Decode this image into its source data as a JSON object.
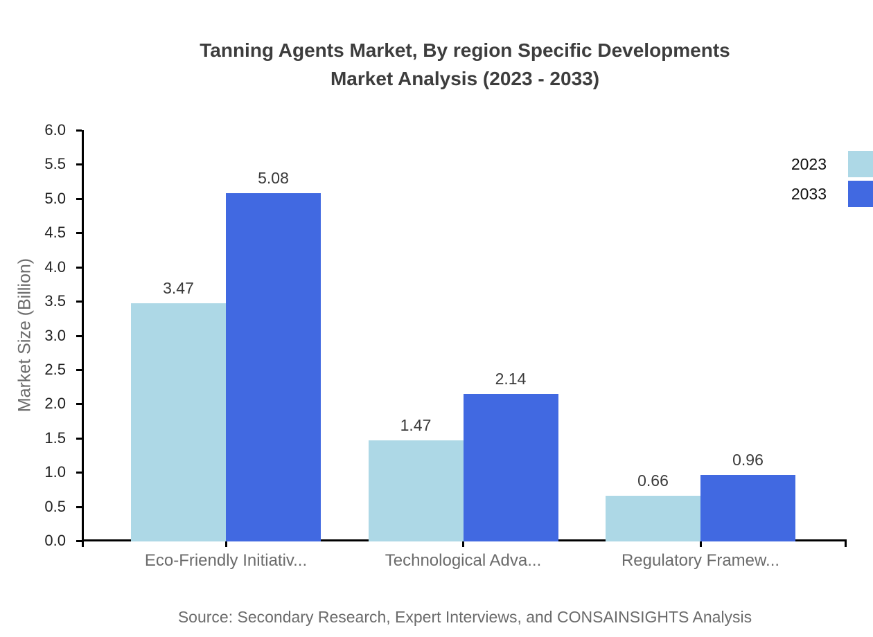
{
  "title": {
    "line1": "Tanning Agents Market, By region Specific Developments",
    "line2": "Market Analysis (2023 - 2033)"
  },
  "source": "Source: Secondary Research, Expert Interviews, and CONSAINSIGHTS Analysis",
  "legend": {
    "items": [
      {
        "label": "2023",
        "color": "#ADD8E6"
      },
      {
        "label": "2033",
        "color": "#4169E1"
      }
    ]
  },
  "colors": {
    "series_2023": "#ADD8E6",
    "series_2033": "#4169E1",
    "axis": "#000000",
    "title_text": "#3d3d3d",
    "muted_text": "#6b6b6b",
    "tick_text": "#1f1f1f",
    "value_text": "#3a3a3a"
  },
  "chart_data": {
    "type": "bar",
    "title": "Tanning Agents Market, By region Specific Developments Market Analysis (2023 - 2033)",
    "categories": [
      "Eco-Friendly Initiativ...",
      "Technological Adva...",
      "Regulatory Framew..."
    ],
    "series": [
      {
        "name": "2023",
        "color": "#ADD8E6",
        "values": [
          3.47,
          1.47,
          0.66
        ]
      },
      {
        "name": "2033",
        "color": "#4169E1",
        "values": [
          5.08,
          2.14,
          0.96
        ]
      }
    ],
    "value_labels": [
      "3.47",
      "5.08",
      "1.47",
      "2.14",
      "0.66",
      "0.96"
    ],
    "xlabel": "",
    "ylabel": "Market Size (Billion)",
    "ylim": [
      0,
      6
    ],
    "ytick_step": 0.5,
    "yticks": [
      "0.0",
      "0.5",
      "1.0",
      "1.5",
      "2.0",
      "2.5",
      "3.0",
      "3.5",
      "4.0",
      "4.5",
      "5.0",
      "5.5",
      "6.0"
    ],
    "grid": false,
    "legend_position": "top-right",
    "bar_value_labels_shown": true
  }
}
